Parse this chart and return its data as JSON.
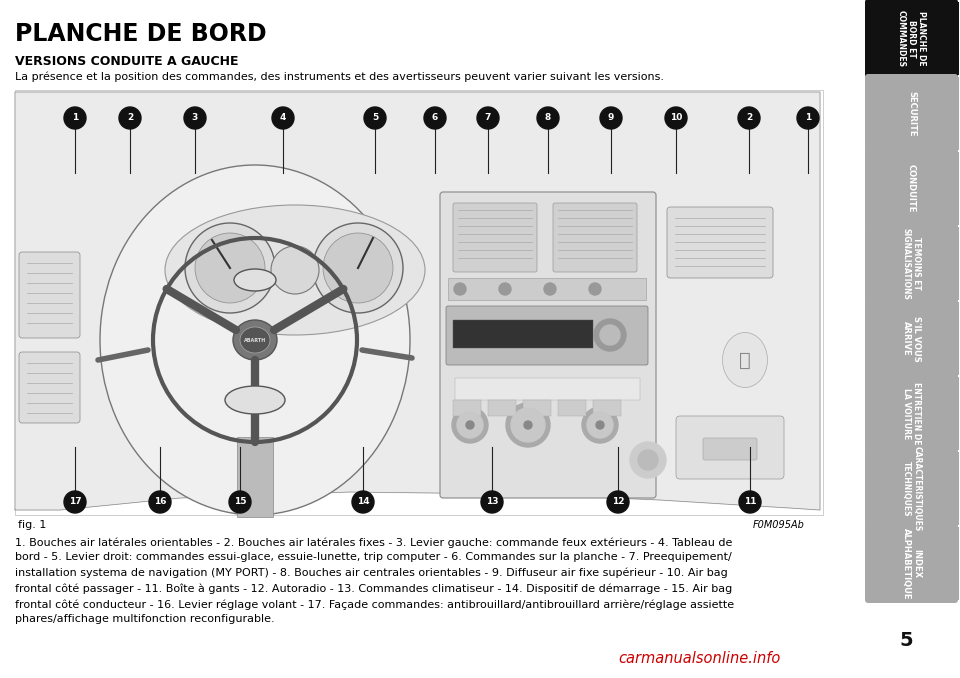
{
  "title": "PLANCHE DE BORD",
  "subtitle": "VERSIONS CONDUITE A GAUCHE",
  "intro_text": "La présence et la position des commandes, des instruments et des avertisseurs peuvent varier suivant les versions.",
  "fig_label": "fig. 1",
  "image_ref": "F0M095Ab",
  "page_number": "5",
  "body_text_lines": [
    "1. Bouches air latérales orientables - 2. Bouches air latérales fixes - 3. Levier gauche: commande feux extérieurs - 4. Tableau de",
    "bord - 5. Levier droit: commandes essui-glace, essuie-lunette, trip computer - 6. Commandes sur la planche - 7. Preequipement/",
    "installation systema de navigation (MY PORT) - 8. Bouches air centrales orientables - 9. Diffuseur air fixe supérieur - 10. Air bag",
    "frontal côté passager - 11. Boîte à gants - 12. Autoradio - 13. Commandes climatiseur - 14. Dispositif de démarrage - 15. Air bag",
    "frontal côté conducteur - 16. Levier réglage volant - 17. Façade commandes: antibrouillard/antibrouillard arrière/réglage assiette",
    "phares/affichage multifonction reconfigurable."
  ],
  "bold_segments": [
    [
      "1.",
      "2.",
      "3.",
      "4.",
      "5.",
      "6.",
      "7.",
      "8.",
      "9.",
      "10.",
      "11.",
      "12.",
      "13.",
      "14.",
      "15.",
      "16.",
      "17."
    ]
  ],
  "tab_labels": [
    "PLANCHE DE\nBORD ET\nCOMMANDES",
    "SECURITE",
    "CONDUITE",
    "TEMOINS ET\nSIGNALISATIONS",
    "S'IL VOUS\nARRIVE",
    "ENTRETIEN DE\nLA VOITURE",
    "CARACTERISTIQUES\nTECHNIQUES",
    "INDEX\nALPHABETIQUE"
  ],
  "tab_active": 0,
  "bg_color": "#ffffff",
  "text_color": "#000000",
  "tab_active_bg": "#111111",
  "tab_inactive_bg": "#a8a8a8",
  "tab_text_color": "#ffffff",
  "watermark_text": "carmanualsonline.info",
  "watermark_color": "#cc0000",
  "circle_top": [
    [
      75,
      118,
      "1"
    ],
    [
      130,
      118,
      "2"
    ],
    [
      195,
      118,
      "3"
    ],
    [
      283,
      118,
      "4"
    ],
    [
      375,
      118,
      "5"
    ],
    [
      435,
      118,
      "6"
    ],
    [
      488,
      118,
      "7"
    ],
    [
      548,
      118,
      "8"
    ],
    [
      611,
      118,
      "9"
    ],
    [
      676,
      118,
      "10"
    ],
    [
      749,
      118,
      "2"
    ],
    [
      808,
      118,
      "1"
    ]
  ],
  "circle_bot": [
    [
      75,
      502,
      "17"
    ],
    [
      160,
      502,
      "16"
    ],
    [
      240,
      502,
      "15"
    ],
    [
      363,
      502,
      "14"
    ],
    [
      492,
      502,
      "13"
    ],
    [
      618,
      502,
      "12"
    ],
    [
      750,
      502,
      "11"
    ]
  ]
}
